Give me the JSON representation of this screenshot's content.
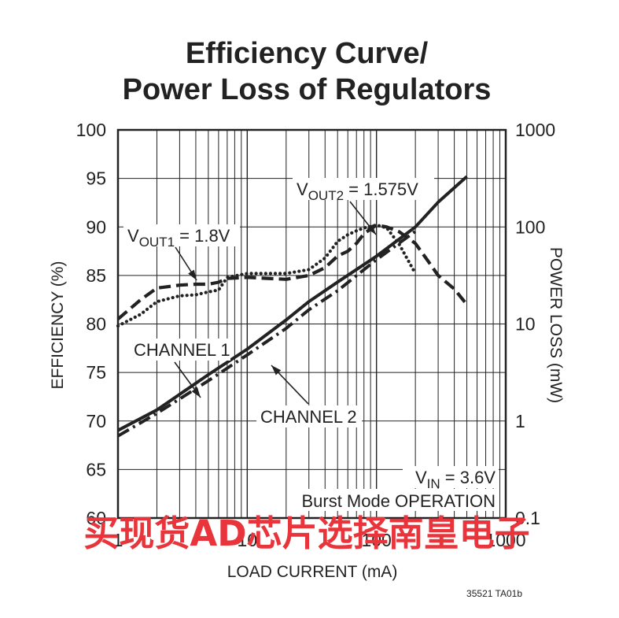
{
  "chart_data": {
    "type": "line",
    "title_lines": [
      "Efficiency Curve/",
      "Power Loss of Regulators"
    ],
    "xlabel": "LOAD CURRENT (mA)",
    "ylabel_left": "EFFICIENCY (%)",
    "ylabel_right": "POWER LOSS (mW)",
    "x_scale": "log",
    "xlim": [
      1,
      1000
    ],
    "x_ticks": [
      "1",
      "10",
      "100",
      "1000"
    ],
    "ylim_left": [
      60,
      100
    ],
    "y_ticks_left": [
      "60",
      "65",
      "70",
      "75",
      "80",
      "85",
      "90",
      "95",
      "100"
    ],
    "y_scale_right": "log",
    "ylim_right": [
      0.1,
      1000
    ],
    "y_ticks_right": [
      "0.1",
      "1",
      "10",
      "100",
      "1000"
    ],
    "grid": true,
    "series": [
      {
        "name": "VOUT1 = 1.8V",
        "quantity": "efficiency",
        "axis": "left",
        "style": "dashed",
        "points": [
          [
            1,
            80.5
          ],
          [
            1.5,
            82.5
          ],
          [
            2,
            83.7
          ],
          [
            3,
            84.0
          ],
          [
            4,
            84.1
          ],
          [
            5,
            84.1
          ],
          [
            6,
            84.3
          ],
          [
            7,
            84.7
          ],
          [
            10,
            84.8
          ],
          [
            20,
            84.6
          ],
          [
            30,
            85.0
          ],
          [
            40,
            85.8
          ],
          [
            50,
            87.0
          ],
          [
            60,
            87.5
          ],
          [
            70,
            88.3
          ],
          [
            80,
            89.3
          ],
          [
            100,
            90.2
          ],
          [
            120,
            90.0
          ],
          [
            150,
            89.5
          ],
          [
            200,
            88.3
          ],
          [
            250,
            86.5
          ],
          [
            300,
            85.0
          ],
          [
            400,
            83.6
          ],
          [
            500,
            82.0
          ]
        ]
      },
      {
        "name": "VOUT2 = 1.575V",
        "quantity": "efficiency",
        "axis": "left",
        "style": "dotted",
        "points": [
          [
            1,
            79.8
          ],
          [
            1.5,
            81.0
          ],
          [
            2,
            82.3
          ],
          [
            3,
            82.9
          ],
          [
            4,
            83.0
          ],
          [
            5,
            83.3
          ],
          [
            6,
            83.5
          ],
          [
            7,
            84.8
          ],
          [
            10,
            85.2
          ],
          [
            20,
            85.2
          ],
          [
            30,
            85.6
          ],
          [
            40,
            86.8
          ],
          [
            50,
            88.5
          ],
          [
            60,
            89.2
          ],
          [
            70,
            89.6
          ],
          [
            80,
            89.9
          ],
          [
            100,
            90.2
          ],
          [
            120,
            89.9
          ],
          [
            150,
            88.2
          ],
          [
            200,
            85.2
          ]
        ]
      },
      {
        "name": "CHANNEL 1",
        "quantity": "power_loss",
        "axis": "right",
        "style": "solid",
        "points": [
          [
            1,
            0.8
          ],
          [
            2,
            1.3
          ],
          [
            5,
            3.0
          ],
          [
            10,
            5.5
          ],
          [
            20,
            11
          ],
          [
            30,
            17
          ],
          [
            50,
            27
          ],
          [
            100,
            50
          ],
          [
            200,
            100
          ],
          [
            300,
            180
          ],
          [
            500,
            330
          ]
        ]
      },
      {
        "name": "CHANNEL 2",
        "quantity": "power_loss",
        "axis": "right",
        "style": "dash-dot",
        "points": [
          [
            1,
            0.7
          ],
          [
            2,
            1.2
          ],
          [
            5,
            2.6
          ],
          [
            10,
            4.8
          ],
          [
            20,
            9
          ],
          [
            30,
            14
          ],
          [
            50,
            22
          ],
          [
            100,
            46
          ],
          [
            200,
            90
          ]
        ]
      }
    ],
    "annotations": [
      {
        "base": "V",
        "sub": "OUT2",
        "rest": " = 1.575V"
      },
      {
        "base": "V",
        "sub": "OUT1",
        "rest": " = 1.8V"
      },
      {
        "base": "CHANNEL 1",
        "sub": "",
        "rest": ""
      },
      {
        "base": "CHANNEL 2",
        "sub": "",
        "rest": ""
      },
      {
        "base": "V",
        "sub": "IN",
        "rest": " = 3.6V"
      },
      {
        "base": "Burst Mode OPERATION",
        "sub": "",
        "rest": ""
      }
    ],
    "figure_id": "35521 TA01b"
  },
  "watermark": "买现货AD芯片选择南皇电子",
  "colors": {
    "ink": "#222222",
    "grid": "#222222",
    "watermark": "#e8343a"
  }
}
